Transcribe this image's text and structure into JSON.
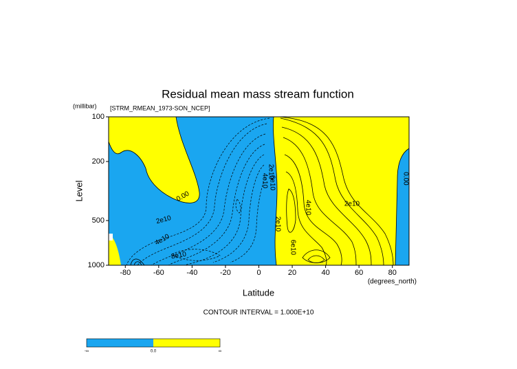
{
  "chart_data": {
    "type": "contour",
    "title": "Residual mean mass stream function",
    "subtitle": "[STRM_RMEAN_1973-SON_NCEP]",
    "x_label": "Latitude",
    "x_units": "(degrees_north)",
    "y_label": "Level",
    "y_units": "(millibar)",
    "xlim": [
      -90,
      90
    ],
    "ylim": [
      1000,
      100
    ],
    "yscale": "log",
    "xticks": [
      -80,
      -60,
      -40,
      -20,
      0,
      20,
      40,
      60,
      80
    ],
    "yticks": [
      100,
      200,
      500,
      1000
    ],
    "contour_labels": [
      "0.00",
      "2e10",
      "4e10",
      "8e10",
      "2e10",
      "4e10",
      "6e10",
      "2e10",
      "4e10",
      "2e10",
      "6e10",
      "0.00"
    ],
    "note": "CONTOUR INTERVAL = 1.000E+10",
    "colorbar": {
      "labels": [
        "-∞",
        "0.0",
        "∞"
      ],
      "colors": [
        "#1aa6f0",
        "#ffff00"
      ]
    }
  }
}
